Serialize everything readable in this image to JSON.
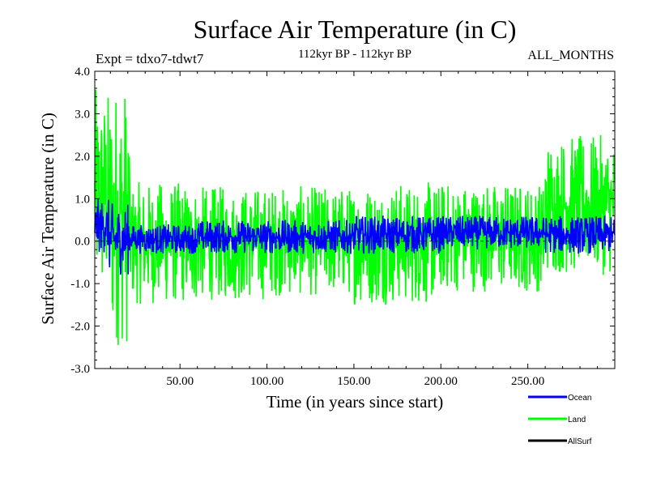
{
  "chart_data": {
    "type": "line",
    "title": "Surface Air Temperature (in C)",
    "left_subtitle": "Expt = tdxo7-tdwt7",
    "center_subtitle": "112kyr BP - 112kyr BP",
    "right_subtitle": "ALL_MONTHS",
    "xlabel": "Time (in years since start)",
    "ylabel": "Surface Air Temperature (in C)",
    "xlim": [
      1,
      300
    ],
    "ylim": [
      -3.0,
      4.0
    ],
    "x_ticks": [
      50,
      100,
      150,
      200,
      250
    ],
    "x_tick_labels": [
      "50.00",
      "100.00",
      "150.00",
      "200.00",
      "250.00"
    ],
    "y_ticks": [
      -3,
      -2,
      -1,
      0,
      1,
      2,
      3,
      4
    ],
    "y_tick_labels": [
      "-3.0",
      "-2.0",
      "-1.0",
      "0.0",
      "1.0",
      "2.0",
      "3.0",
      "4.0"
    ],
    "zero_line": true,
    "grid": false,
    "legend_position": "bottom-right, below plot",
    "series": [
      {
        "name": "Land",
        "color": "#00ff00",
        "segments": [
          {
            "x_start": 1,
            "x_end": 9,
            "y_min": -1.6,
            "y_max": 3.6
          },
          {
            "x_start": 9,
            "x_end": 21,
            "y_min": -2.5,
            "y_max": 3.8
          },
          {
            "x_start": 21,
            "x_end": 60,
            "y_min": -1.5,
            "y_max": 1.4
          },
          {
            "x_start": 60,
            "x_end": 100,
            "y_min": -1.4,
            "y_max": 1.3
          },
          {
            "x_start": 100,
            "x_end": 150,
            "y_min": -1.3,
            "y_max": 1.3
          },
          {
            "x_start": 150,
            "x_end": 200,
            "y_min": -1.5,
            "y_max": 1.4
          },
          {
            "x_start": 200,
            "x_end": 260,
            "y_min": -1.2,
            "y_max": 1.4
          },
          {
            "x_start": 260,
            "x_end": 300,
            "y_min": -0.8,
            "y_max": 2.5
          }
        ]
      },
      {
        "name": "Ocean",
        "color": "#0000ff",
        "segments": [
          {
            "x_start": 1,
            "x_end": 9,
            "y_min": -0.3,
            "y_max": 1.0
          },
          {
            "x_start": 9,
            "x_end": 21,
            "y_min": -0.8,
            "y_max": 0.9
          },
          {
            "x_start": 21,
            "x_end": 60,
            "y_min": -0.3,
            "y_max": 0.4
          },
          {
            "x_start": 60,
            "x_end": 100,
            "y_min": -0.3,
            "y_max": 0.5
          },
          {
            "x_start": 100,
            "x_end": 150,
            "y_min": -0.3,
            "y_max": 0.5
          },
          {
            "x_start": 150,
            "x_end": 200,
            "y_min": -0.3,
            "y_max": 0.6
          },
          {
            "x_start": 200,
            "x_end": 260,
            "y_min": -0.2,
            "y_max": 0.6
          },
          {
            "x_start": 260,
            "x_end": 300,
            "y_min": -0.3,
            "y_max": 0.6
          }
        ]
      },
      {
        "name": "AllSurf",
        "color": "#000000",
        "segments": []
      }
    ],
    "legend": [
      {
        "label": "Ocean",
        "color": "#0000ff"
      },
      {
        "label": "Land",
        "color": "#00ff00"
      },
      {
        "label": "AllSurf",
        "color": "#000000"
      }
    ]
  }
}
